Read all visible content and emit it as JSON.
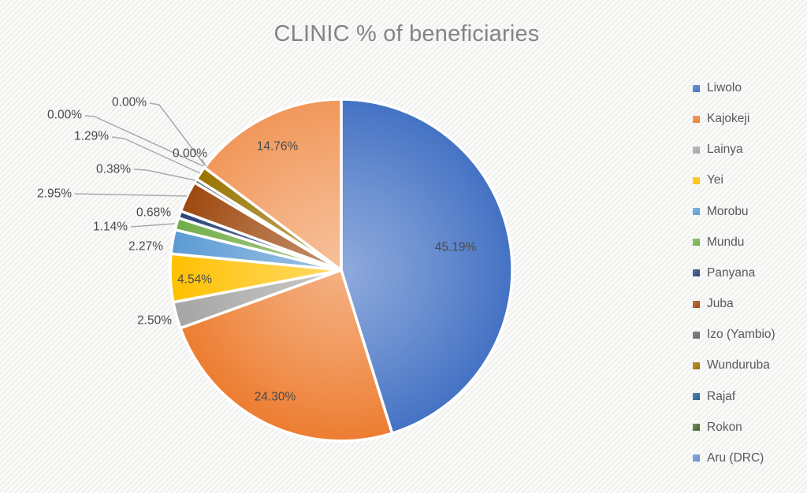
{
  "title": "CLINIC % of beneficiaries",
  "colors": {
    "title_text": "#848484",
    "label_text": "#4a4a4a",
    "legend_text": "#595959",
    "leader_line": "#a9a9a9",
    "slice_border": "#ffffff"
  },
  "chart_data": {
    "type": "pie",
    "title": "CLINIC % of beneficiaries",
    "legend_position": "right",
    "start_angle_deg": 0,
    "direction": "clockwise",
    "value_unit": "percent",
    "slices": [
      {
        "name": "Liwolo",
        "value": 45.19,
        "label": "45.19%",
        "color": "#4472C4",
        "in_legend": true
      },
      {
        "name": "Kajokeji",
        "value": 24.3,
        "label": "24.30%",
        "color": "#ED7D31",
        "in_legend": true
      },
      {
        "name": "Lainya",
        "value": 2.5,
        "label": "2.50%",
        "color": "#A5A5A5",
        "in_legend": true
      },
      {
        "name": "Yei",
        "value": 4.54,
        "label": "4.54%",
        "color": "#FFC000",
        "in_legend": true
      },
      {
        "name": "Morobu",
        "value": 2.27,
        "label": "2.27%",
        "color": "#5B9BD5",
        "in_legend": true
      },
      {
        "name": "Mundu",
        "value": 1.14,
        "label": "1.14%",
        "color": "#70AD47",
        "in_legend": true
      },
      {
        "name": "Panyana",
        "value": 0.68,
        "label": "0.68%",
        "color": "#264478",
        "in_legend": true
      },
      {
        "name": "Juba",
        "value": 2.95,
        "label": "2.95%",
        "color": "#9E480E",
        "in_legend": true
      },
      {
        "name": "Izo (Yambio)",
        "value": 0.38,
        "label": "0.38%",
        "color": "#636363",
        "in_legend": true
      },
      {
        "name": "Wunduruba",
        "value": 1.29,
        "label": "1.29%",
        "color": "#997300",
        "in_legend": true
      },
      {
        "name": "Rajaf",
        "value": 0.0,
        "label": "0.00%",
        "color": "#255E91",
        "in_legend": true
      },
      {
        "name": "Rokon",
        "value": 0.0,
        "label": "0.00%",
        "color": "#43682B",
        "in_legend": true
      },
      {
        "name": "Aru (DRC)",
        "value": 0.0,
        "label": "0.00%",
        "color": "#698ED0",
        "in_legend": true
      },
      {
        "name": "",
        "value": 14.76,
        "label": "14.76%",
        "color": "#F1975A",
        "in_legend": false
      }
    ]
  }
}
